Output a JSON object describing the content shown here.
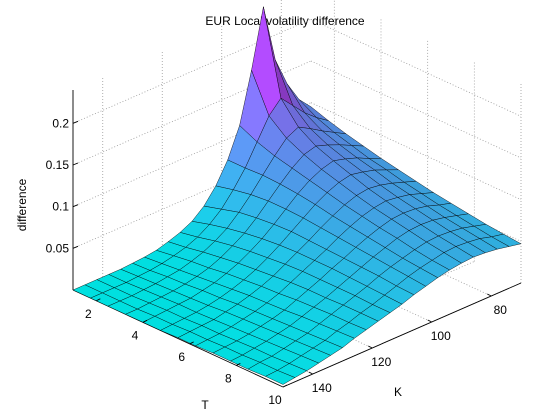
{
  "chart_data": {
    "type": "surface",
    "title": "EUR Local volatility difference",
    "xlabel": "T",
    "ylabel": "K",
    "zlabel": "difference",
    "x_ticks": [
      "2",
      "4",
      "6",
      "8",
      "10"
    ],
    "y_ticks": [
      "80",
      "100",
      "120",
      "140"
    ],
    "z_ticks": [
      "0.05",
      "0.1",
      "0.15",
      "0.2"
    ],
    "xlim": [
      1,
      10
    ],
    "ylim": [
      70,
      150
    ],
    "zlim": [
      0,
      0.24
    ],
    "grid": true,
    "colormap": [
      "#00ffff",
      "#ff00ff"
    ],
    "T": [
      1,
      1.75,
      2.5,
      3.25,
      4,
      4.75,
      5.5,
      6.25,
      7,
      7.75,
      8.5,
      9.25,
      10
    ],
    "K": [
      70,
      74,
      78,
      82,
      86,
      90,
      94,
      98,
      102,
      106,
      110,
      114,
      118,
      122,
      126,
      130,
      134,
      138,
      142,
      146,
      150
    ],
    "Z": [
      [
        0.095,
        0.11,
        0.135,
        0.17,
        0.24,
        0.17,
        0.11,
        0.075,
        0.05,
        0.032,
        0.02,
        0.013,
        0.008,
        0.004,
        0.002,
        0.001,
        0.0,
        0.0,
        0.0,
        0.0,
        0.0
      ],
      [
        0.088,
        0.098,
        0.11,
        0.125,
        0.14,
        0.125,
        0.1,
        0.075,
        0.055,
        0.038,
        0.026,
        0.017,
        0.011,
        0.007,
        0.004,
        0.002,
        0.001,
        0.0,
        0.0,
        0.0,
        0.0
      ],
      [
        0.082,
        0.09,
        0.098,
        0.107,
        0.115,
        0.108,
        0.093,
        0.076,
        0.059,
        0.044,
        0.031,
        0.022,
        0.015,
        0.01,
        0.006,
        0.004,
        0.002,
        0.001,
        0.0,
        0.0,
        0.0
      ],
      [
        0.077,
        0.084,
        0.091,
        0.097,
        0.102,
        0.098,
        0.088,
        0.075,
        0.061,
        0.047,
        0.035,
        0.026,
        0.018,
        0.012,
        0.008,
        0.005,
        0.003,
        0.002,
        0.001,
        0.0,
        0.0
      ],
      [
        0.072,
        0.078,
        0.085,
        0.09,
        0.094,
        0.09,
        0.083,
        0.073,
        0.061,
        0.049,
        0.038,
        0.029,
        0.021,
        0.015,
        0.01,
        0.007,
        0.004,
        0.003,
        0.002,
        0.001,
        0.0
      ],
      [
        0.068,
        0.074,
        0.08,
        0.084,
        0.087,
        0.084,
        0.078,
        0.07,
        0.06,
        0.05,
        0.04,
        0.031,
        0.023,
        0.017,
        0.012,
        0.008,
        0.005,
        0.003,
        0.002,
        0.001,
        0.0
      ],
      [
        0.064,
        0.069,
        0.074,
        0.078,
        0.08,
        0.078,
        0.073,
        0.066,
        0.058,
        0.049,
        0.041,
        0.033,
        0.025,
        0.019,
        0.014,
        0.01,
        0.007,
        0.004,
        0.003,
        0.002,
        0.001
      ],
      [
        0.06,
        0.065,
        0.07,
        0.073,
        0.075,
        0.073,
        0.069,
        0.063,
        0.056,
        0.048,
        0.041,
        0.034,
        0.027,
        0.02,
        0.015,
        0.011,
        0.008,
        0.005,
        0.003,
        0.002,
        0.001
      ],
      [
        0.057,
        0.061,
        0.066,
        0.069,
        0.07,
        0.069,
        0.065,
        0.06,
        0.054,
        0.047,
        0.041,
        0.034,
        0.028,
        0.022,
        0.016,
        0.012,
        0.009,
        0.006,
        0.004,
        0.003,
        0.002
      ],
      [
        0.054,
        0.058,
        0.062,
        0.065,
        0.066,
        0.065,
        0.062,
        0.057,
        0.052,
        0.046,
        0.04,
        0.034,
        0.028,
        0.023,
        0.018,
        0.013,
        0.01,
        0.007,
        0.005,
        0.003,
        0.002
      ],
      [
        0.051,
        0.055,
        0.059,
        0.061,
        0.062,
        0.061,
        0.058,
        0.054,
        0.05,
        0.045,
        0.039,
        0.034,
        0.029,
        0.024,
        0.019,
        0.014,
        0.011,
        0.008,
        0.005,
        0.004,
        0.002
      ],
      [
        0.049,
        0.052,
        0.056,
        0.058,
        0.059,
        0.058,
        0.055,
        0.052,
        0.048,
        0.043,
        0.038,
        0.033,
        0.029,
        0.024,
        0.02,
        0.015,
        0.012,
        0.009,
        0.006,
        0.004,
        0.003
      ],
      [
        0.047,
        0.05,
        0.053,
        0.055,
        0.056,
        0.055,
        0.053,
        0.05,
        0.046,
        0.042,
        0.037,
        0.033,
        0.029,
        0.025,
        0.021,
        0.016,
        0.013,
        0.01,
        0.007,
        0.005,
        0.003
      ]
    ]
  }
}
